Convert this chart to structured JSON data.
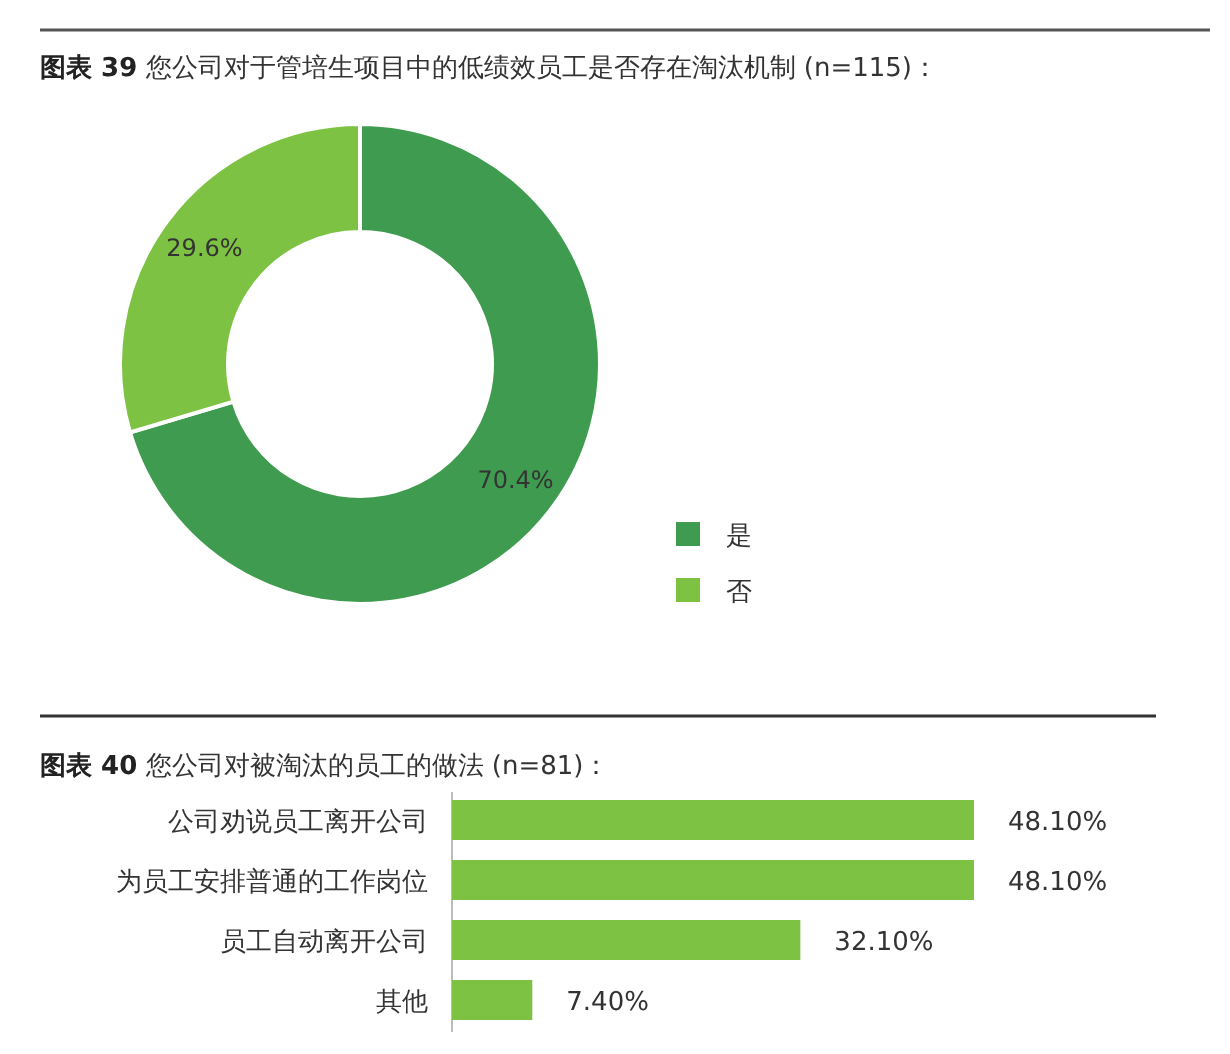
{
  "chart_data": [
    {
      "type": "donut",
      "title": "**图表 39** 您公司对于管培生项目中的低绩效员工是否存在淘汰机制 (n=115)：",
      "categories": [
        "是",
        "否"
      ],
      "values": [
        70.4,
        29.6
      ],
      "colors": [
        "#3f9b4f",
        "#7dc242"
      ],
      "value_labels": [
        "70.4%",
        "29.6%"
      ],
      "legend": "right"
    },
    {
      "type": "bar",
      "orientation": "horizontal",
      "title": "**图表 40** 您公司对被淘汰的员工的做法 (n=81)：",
      "categories": [
        "公司劝说员工离开公司",
        "为员工安排普通的工作岗位",
        "员工自动离开公司",
        "其他"
      ],
      "values": [
        48.1,
        48.1,
        32.1,
        7.4
      ],
      "color": "#7dc242",
      "value_labels": [
        "48.10%",
        "48.10%",
        "32.10%",
        "7.40%"
      ]
    }
  ]
}
